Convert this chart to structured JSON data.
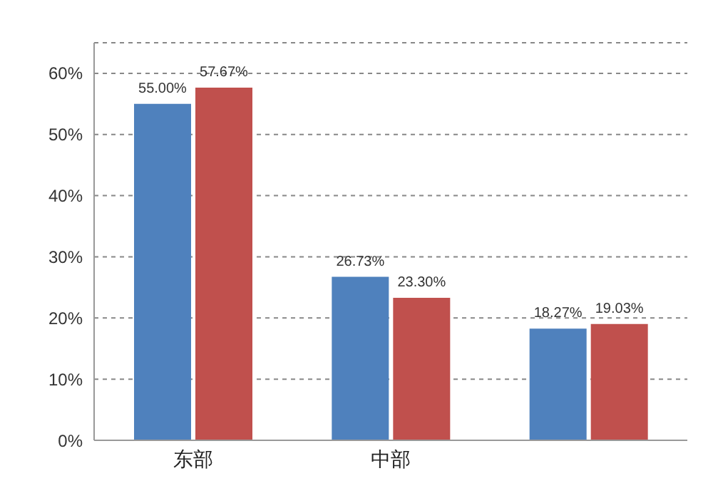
{
  "chart_data": {
    "type": "bar",
    "categories": [
      "东部",
      "中部",
      null
    ],
    "series": [
      {
        "color": "#4f81bd",
        "values": [
          55.0,
          26.73,
          18.27
        ],
        "value_labels": [
          "55.00%",
          "26.73%",
          "18.27%"
        ]
      },
      {
        "color": "#c0504d",
        "values": [
          57.67,
          23.3,
          19.03
        ],
        "value_labels": [
          "57.67%",
          "23.30%",
          "19.03%"
        ]
      }
    ],
    "ylim": [
      0,
      65
    ],
    "yticks": [
      {
        "value": 0,
        "label": "0%"
      },
      {
        "value": 10,
        "label": "10%"
      },
      {
        "value": 20,
        "label": "20%"
      },
      {
        "value": 30,
        "label": "30%"
      },
      {
        "value": 40,
        "label": "40%"
      },
      {
        "value": 50,
        "label": "50%"
      },
      {
        "value": 60,
        "label": "60%"
      }
    ],
    "grid": "y",
    "legend": false
  }
}
